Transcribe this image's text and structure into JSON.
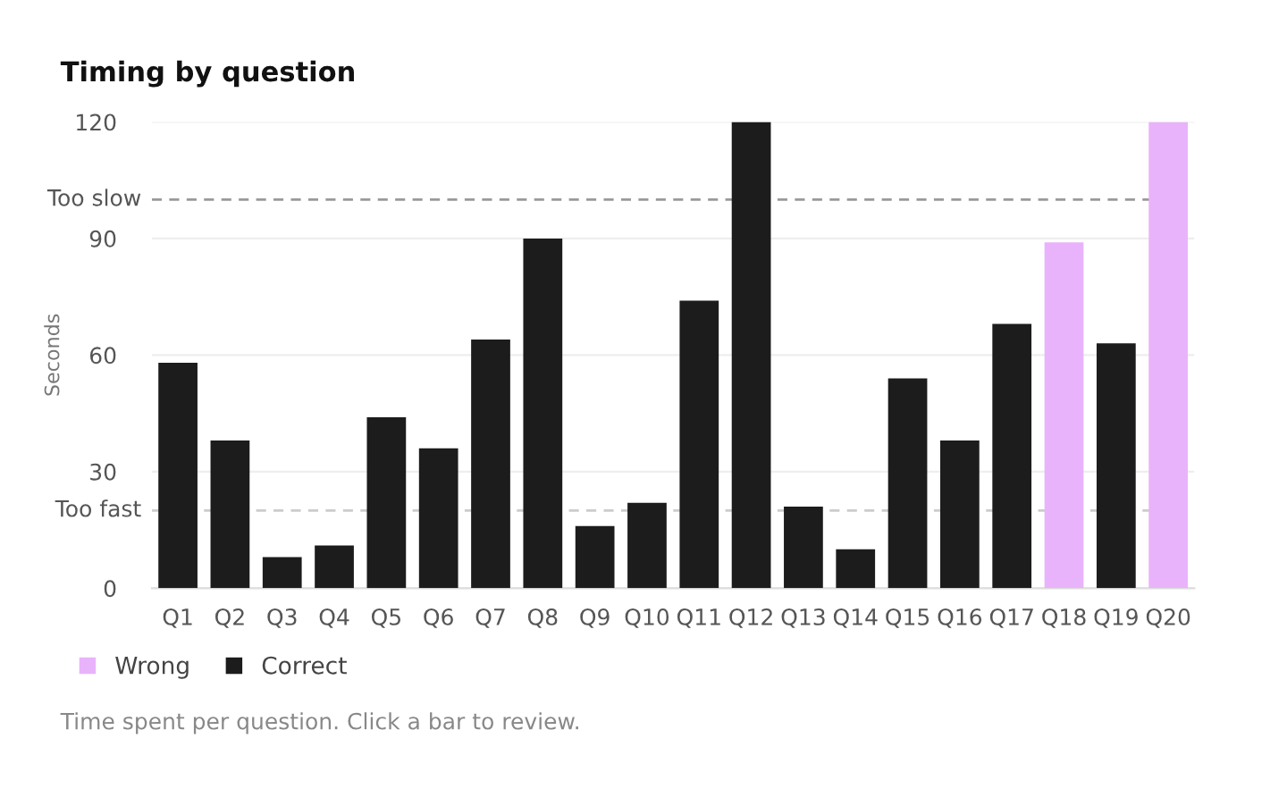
{
  "chart_data": {
    "type": "bar",
    "title": "Timing by question",
    "ylabel": "Seconds",
    "categories": [
      "Q1",
      "Q2",
      "Q3",
      "Q4",
      "Q5",
      "Q6",
      "Q7",
      "Q8",
      "Q9",
      "Q10",
      "Q11",
      "Q12",
      "Q13",
      "Q14",
      "Q15",
      "Q16",
      "Q17",
      "Q18",
      "Q19",
      "Q20"
    ],
    "series": [
      {
        "name": "Wrong",
        "color": "#e9b3fb",
        "values": [
          null,
          null,
          null,
          null,
          null,
          null,
          null,
          null,
          null,
          null,
          null,
          null,
          null,
          null,
          null,
          null,
          null,
          89,
          null,
          120
        ]
      },
      {
        "name": "Correct",
        "color": "#1c1c1c",
        "values": [
          58,
          38,
          8,
          11,
          44,
          36,
          64,
          90,
          16,
          22,
          74,
          120,
          21,
          10,
          54,
          38,
          68,
          null,
          63,
          null
        ]
      }
    ],
    "ylim": [
      0,
      120
    ],
    "yticks": [
      0,
      30,
      60,
      90,
      120
    ],
    "grid": "y",
    "legend": "bottom left",
    "ref_lines": [
      {
        "axis": "y",
        "value": 100,
        "label": "Too slow",
        "color": "#999999",
        "line_style": "dashed"
      },
      {
        "axis": "y",
        "value": 20,
        "label": "Too fast",
        "color": "#cccccc",
        "line_style": "dashed"
      }
    ],
    "annotations": [
      "Time spent per question. Click a bar to review."
    ]
  }
}
